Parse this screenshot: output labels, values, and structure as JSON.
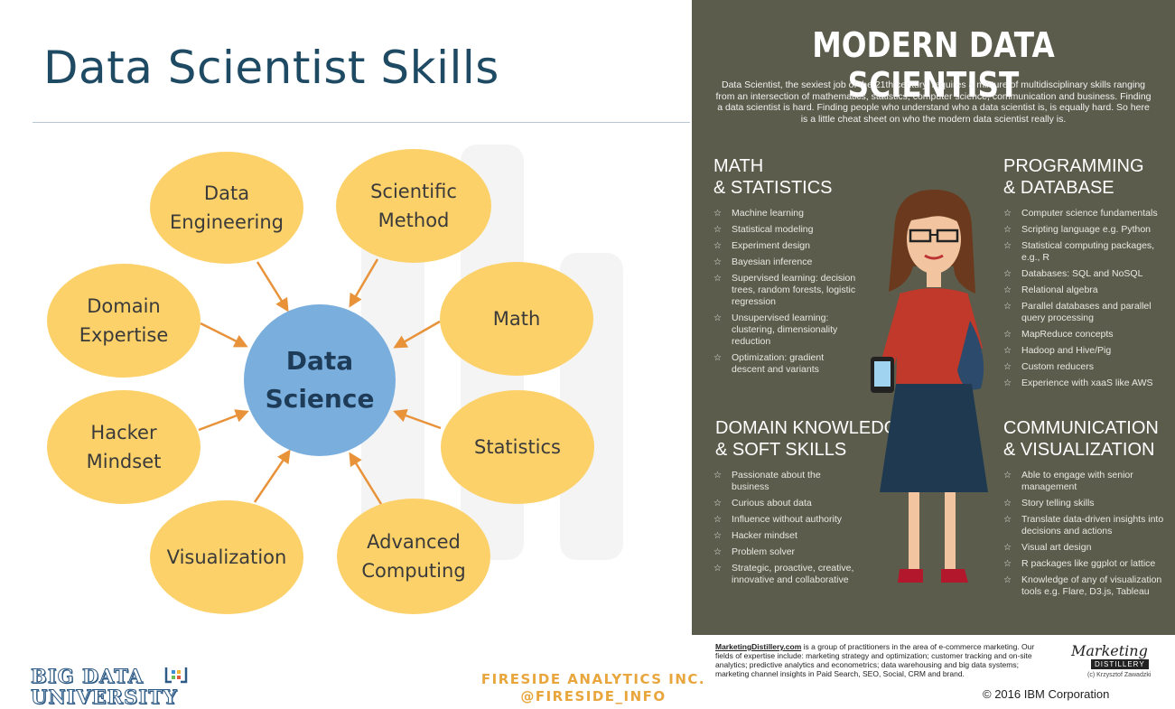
{
  "slide": {
    "title": "Data Scientist Skills"
  },
  "diagram": {
    "center": [
      "Data",
      "Science"
    ],
    "nodes": [
      {
        "id": "data-engineering",
        "lines": [
          "Data",
          "Engineering"
        ]
      },
      {
        "id": "scientific-method",
        "lines": [
          "Scientific",
          "Method"
        ]
      },
      {
        "id": "domain-expertise",
        "lines": [
          "Domain",
          "Expertise"
        ]
      },
      {
        "id": "math",
        "lines": [
          "Math"
        ]
      },
      {
        "id": "hacker-mindset",
        "lines": [
          "Hacker",
          "Mindset"
        ]
      },
      {
        "id": "statistics",
        "lines": [
          "Statistics"
        ]
      },
      {
        "id": "visualization",
        "lines": [
          "Visualization"
        ]
      },
      {
        "id": "advanced-computing",
        "lines": [
          "Advanced",
          "Computing"
        ]
      }
    ],
    "colors": {
      "node": "#fcd16a",
      "center": "#7aaedd",
      "arrow": "#e8923a"
    }
  },
  "infographic": {
    "title": "MODERN DATA SCIENTIST",
    "intro": "Data Scientist, the sexiest job of the 21th century, requires a mixture of multidisciplinary skills ranging from an intersection of mathematics, statistics, computer science, communication and business. Finding a data scientist is hard.  Finding people who understand who a data scientist is, is equally hard. So here is a little cheat sheet on who the modern data scientist really is.",
    "sections": {
      "math": {
        "heading": [
          "MATH",
          "& STATISTICS"
        ],
        "items": [
          "Machine learning",
          "Statistical modeling",
          "Experiment design",
          "Bayesian inference",
          "Supervised learning: decision trees, random forests, logistic regression",
          "Unsupervised learning: clustering, dimensionality reduction",
          "Optimization: gradient descent and variants"
        ]
      },
      "programming": {
        "heading": [
          "PROGRAMMING",
          "& DATABASE"
        ],
        "items": [
          "Computer science fundamentals",
          "Scripting language e.g. Python",
          "Statistical computing packages, e.g., R",
          "Databases: SQL and NoSQL",
          "Relational algebra",
          "Parallel databases and parallel query processing",
          "MapReduce concepts",
          "Hadoop and Hive/Pig",
          "Custom reducers",
          "Experience with xaaS like AWS"
        ]
      },
      "domain": {
        "heading": [
          "DOMAIN KNOWLEDGE",
          "& SOFT SKILLS"
        ],
        "items": [
          "Passionate about the business",
          "Curious about data",
          "Influence without authority",
          "Hacker mindset",
          "Problem solver",
          "Strategic, proactive, creative, innovative and collaborative"
        ]
      },
      "communication": {
        "heading": [
          "COMMUNICATION",
          "& VISUALIZATION"
        ],
        "items": [
          "Able to engage with senior management",
          "Story telling skills",
          "Translate data-driven insights into decisions and actions",
          "Visual art design",
          "R packages like ggplot or lattice",
          "Knowledge of any of visualization tools e.g. Flare,  D3.js,  Tableau"
        ]
      }
    },
    "bullet_icon": "star-outline-icon",
    "background": "#5b5c4b"
  },
  "footer": {
    "site": "MarketingDistillery.com",
    "text": " is a group of practitioners in the area of e-commerce marketing. Our fields of expertise include: marketing strategy and optimization; customer tracking and on-site analytics; predictive analytics and econometrics; data warehousing and big data systems; marketing channel insights in Paid Search, SEO, Social, CRM and brand.",
    "logo_script": "Marketing",
    "logo_box": "DISTILLERY",
    "logo_credit": "(c) Krzysztof Zawadzki",
    "copyright": "© 2016 IBM Corporation"
  },
  "branding": {
    "bdu": [
      "BIG DATA",
      "UNIVERSITY"
    ],
    "fireside": [
      "FIRESIDE ANALYTICS INC.",
      "@FIRESIDE_INFO"
    ]
  }
}
